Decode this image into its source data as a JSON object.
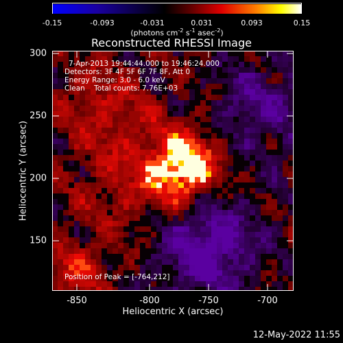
{
  "colorbar": {
    "ticks": [
      "-0.15",
      "-0.093",
      "-0.031",
      "0.031",
      "0.093",
      "0.15"
    ],
    "unit_main": "(photons cm",
    "unit_sup1": "-2",
    "unit_mid": " s",
    "unit_sup2": "-1",
    "unit_mid2": " asec",
    "unit_sup3": "-2",
    "unit_end": ")",
    "colors": [
      "#0000ff",
      "#000000",
      "#ff0000",
      "#ffff00",
      "#ffffff"
    ]
  },
  "title": "Reconstructed RHESSI Image",
  "annotations": {
    "time": "7-Apr-2013 19:44:44.000 to 19:46:24.000",
    "detectors": "Detectors: 3F 4F 5F 6F 7F 8F, Att 0",
    "energy": "Energy Range: 3.0 - 6.0 keV",
    "clean": "Clean    Total counts: 7.76E+03",
    "peak": "Position of Peak = [-764,212]"
  },
  "axes": {
    "xlabel": "Heliocentric X (arcsec)",
    "ylabel": "Heliocentric Y (arcsec)",
    "xticks": [
      "-850",
      "-800",
      "-750",
      "-700"
    ],
    "yticks": [
      "300",
      "250",
      "200",
      "150"
    ]
  },
  "footer": "12-May-2022 11:55"
}
